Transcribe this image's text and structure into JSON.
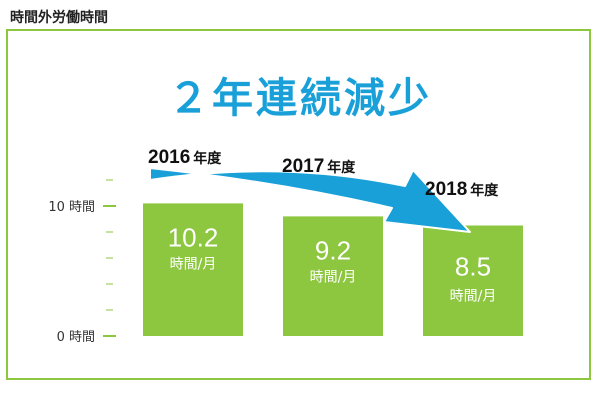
{
  "chart_data": {
    "type": "bar",
    "caption": "時間外労働時間",
    "title": "２年連続減少",
    "categories": [
      "2016",
      "2017",
      "2018"
    ],
    "category_suffix": "年度",
    "values": [
      10.2,
      9.2,
      8.5
    ],
    "value_unit": "時間/月",
    "y_ticks": [
      {
        "value": 10,
        "label": "10 時間"
      },
      {
        "value": 0,
        "label": "0 時間"
      }
    ],
    "ylim": [
      0,
      10
    ],
    "minor_tick_step": 2,
    "arrow": "2016年度 → 2018年度 (decrease)",
    "colors": {
      "bar": "#8dc63f",
      "frame": "#8dc63f",
      "title": "#1aa0d8",
      "arrow": "#1aa0d8",
      "tick": "#8dc63f"
    }
  }
}
